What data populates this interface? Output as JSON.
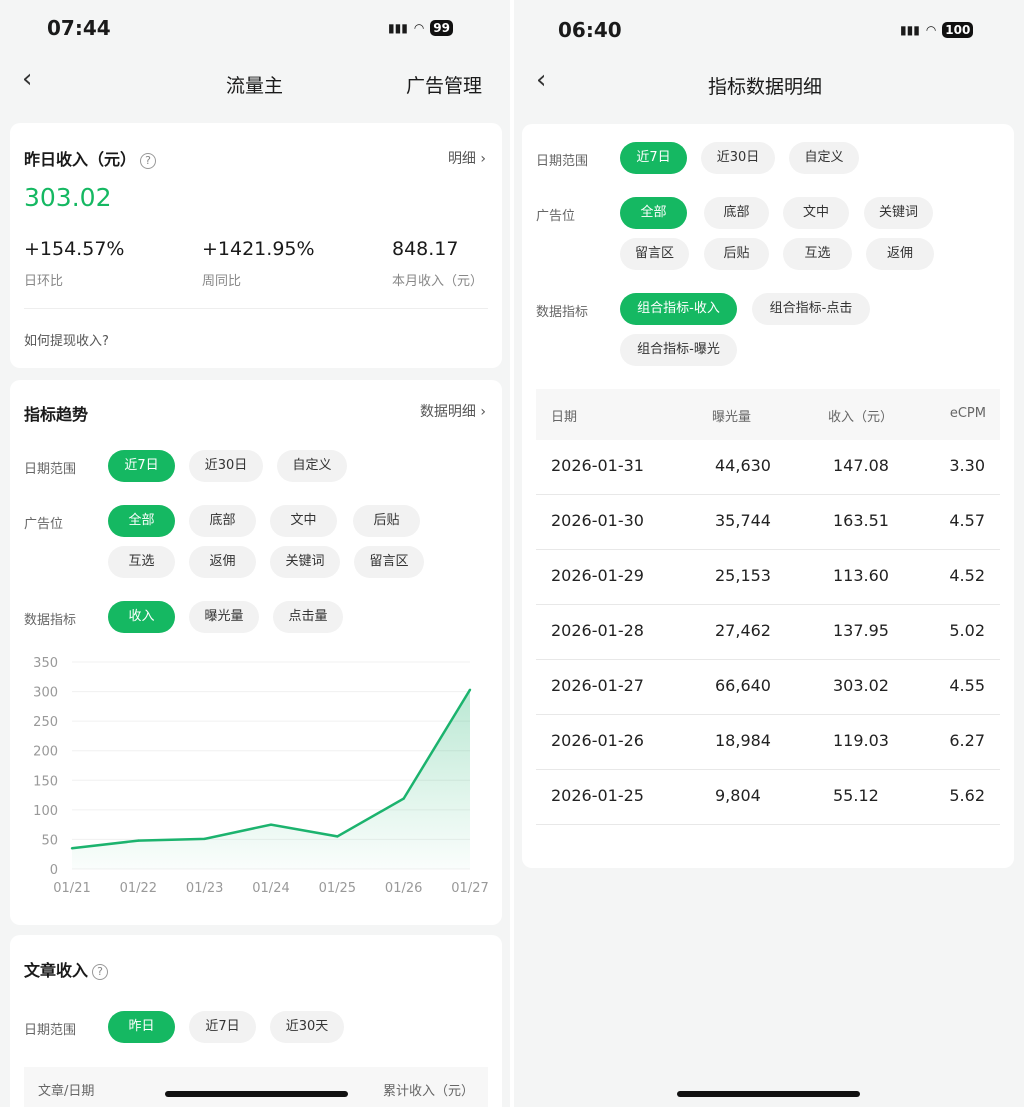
{
  "left": {
    "status": {
      "time": "07:44",
      "battery": "99"
    },
    "nav": {
      "title": "流量主",
      "right": "广告管理"
    },
    "income": {
      "title": "昨日收入（元）",
      "detail": "明细",
      "amount": "303.02",
      "stats": [
        {
          "value": "+154.57%",
          "label": "日环比"
        },
        {
          "value": "+1421.95%",
          "label": "周同比"
        },
        {
          "value": "848.17",
          "label": "本月收入（元）"
        }
      ],
      "withdraw": "如何提现收入?"
    },
    "trend": {
      "title": "指标趋势",
      "detail": "数据明细",
      "date_label": "日期范围",
      "dates": [
        "近7日",
        "近30日",
        "自定义"
      ],
      "slot_label": "广告位",
      "slots": [
        "全部",
        "底部",
        "文中",
        "后贴",
        "互选",
        "返佣",
        "关键词",
        "留言区"
      ],
      "metric_label": "数据指标",
      "metrics": [
        "收入",
        "曝光量",
        "点击量"
      ]
    },
    "article": {
      "title": "文章收入",
      "date_label": "日期范围",
      "dates": [
        "昨日",
        "近7日",
        "近30天"
      ],
      "col1": "文章/日期",
      "col2": "累计收入（元）"
    }
  },
  "right": {
    "status": {
      "time": "06:40",
      "battery": "100"
    },
    "nav": {
      "title": "指标数据明细"
    },
    "date_label": "日期范围",
    "dates": [
      "近7日",
      "近30日",
      "自定义"
    ],
    "slot_label": "广告位",
    "slots": [
      "全部",
      "底部",
      "文中",
      "关键词",
      "留言区",
      "后贴",
      "互选",
      "返佣"
    ],
    "metric_label": "数据指标",
    "metrics": [
      "组合指标-收入",
      "组合指标-点击",
      "组合指标-曝光"
    ],
    "table": {
      "headers": [
        "日期",
        "曝光量",
        "收入（元）",
        "eCPM"
      ],
      "rows": [
        [
          "2026-01-31",
          "44,630",
          "147.08",
          "3.30"
        ],
        [
          "2026-01-30",
          "35,744",
          "163.51",
          "4.57"
        ],
        [
          "2026-01-29",
          "25,153",
          "113.60",
          "4.52"
        ],
        [
          "2026-01-28",
          "27,462",
          "137.95",
          "5.02"
        ],
        [
          "2026-01-27",
          "66,640",
          "303.02",
          "4.55"
        ],
        [
          "2026-01-26",
          "18,984",
          "119.03",
          "6.27"
        ],
        [
          "2026-01-25",
          "9,804",
          "55.12",
          "5.62"
        ]
      ]
    }
  },
  "colors": {
    "accent": "#15b862",
    "line": "#1cb36e"
  },
  "chart_data": {
    "type": "area",
    "categories": [
      "01/21",
      "01/22",
      "01/23",
      "01/24",
      "01/25",
      "01/26",
      "01/27"
    ],
    "values": [
      35,
      48,
      51,
      75,
      55.12,
      119.03,
      303.02
    ],
    "yticks": [
      "0",
      "50",
      "100",
      "150",
      "200",
      "250",
      "300",
      "350"
    ],
    "ylim": [
      0,
      350
    ],
    "grid": true,
    "legend": "none"
  }
}
